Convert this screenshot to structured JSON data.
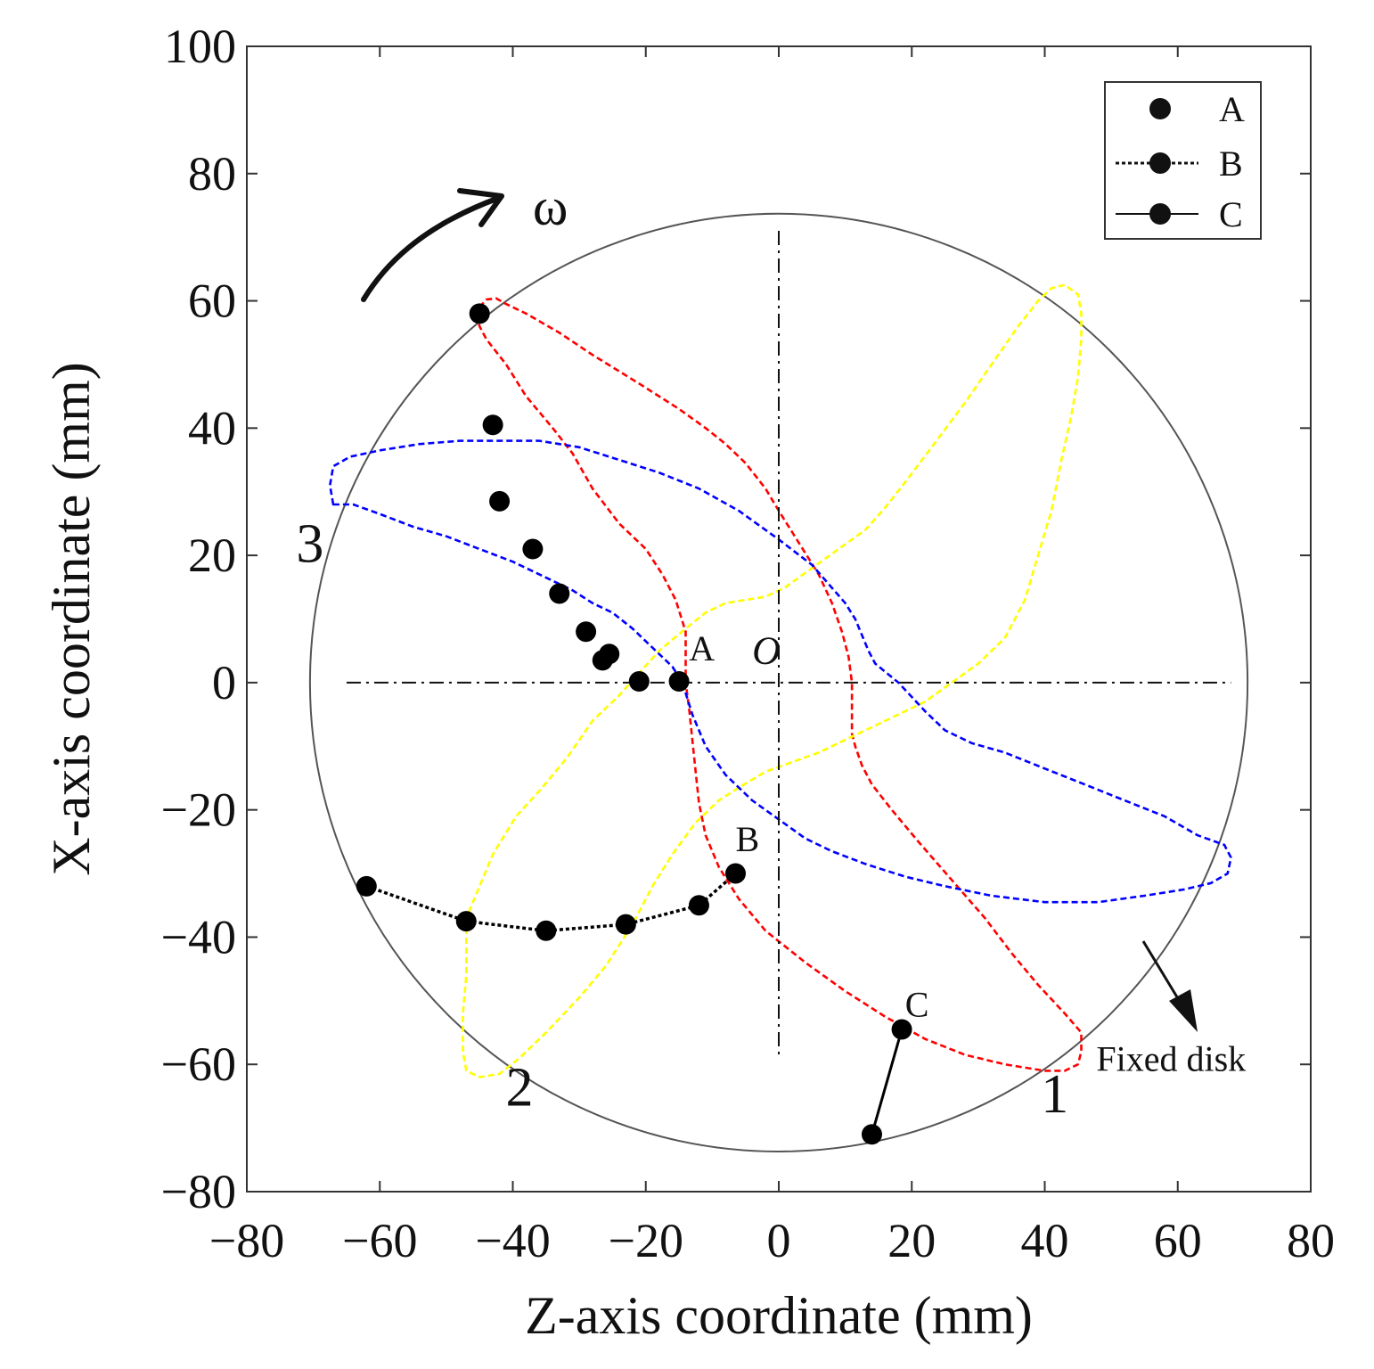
{
  "chart_data": {
    "type": "scatter",
    "title": "",
    "xlabel": "Z-axis coordinate (mm)",
    "ylabel": "X-axis coordinate (mm)",
    "xlim": [
      -80,
      80
    ],
    "ylim": [
      -80,
      100
    ],
    "xticks": [
      "−80",
      "−60",
      "−40",
      "−20",
      "0",
      "20",
      "40",
      "60",
      "80"
    ],
    "xtick_values": [
      -80,
      -60,
      -40,
      -20,
      0,
      20,
      40,
      60,
      80
    ],
    "yticks": [
      "100",
      "80",
      "60",
      "40",
      "20",
      "0",
      "−20",
      "−40",
      "−60",
      "−80"
    ],
    "ytick_values": [
      100,
      80,
      60,
      40,
      20,
      0,
      -20,
      -40,
      -60,
      -80
    ],
    "grid": false,
    "legend_position": "top-right",
    "fixed_disk": {
      "center": [
        0,
        0
      ],
      "radius_mm": 70.5,
      "label": "Fixed disk",
      "color": "#555555"
    },
    "center_lines": {
      "horizontal_z_range": [
        -65,
        68
      ],
      "vertical_x_range": [
        -59,
        71
      ]
    },
    "series": [
      {
        "name": "A",
        "style": "markers",
        "color": "#000000",
        "points": [
          [
            -45,
            58
          ],
          [
            -43,
            40.5
          ],
          [
            -42,
            28.5
          ],
          [
            -37,
            21
          ],
          [
            -33,
            14
          ],
          [
            -29,
            8
          ],
          [
            -25.5,
            4.5
          ],
          [
            -26.5,
            3.5
          ],
          [
            -21,
            0.2
          ],
          [
            -15,
            0.2
          ]
        ]
      },
      {
        "name": "B",
        "style": "dotted-line-markers",
        "color": "#000000",
        "points": [
          [
            -62,
            -32
          ],
          [
            -47,
            -37.5
          ],
          [
            -35,
            -39
          ],
          [
            -23,
            -38
          ],
          [
            -12,
            -35
          ],
          [
            -6.5,
            -30
          ]
        ]
      },
      {
        "name": "C",
        "style": "solid-line-markers",
        "color": "#000000",
        "points": [
          [
            14,
            -71
          ],
          [
            18.5,
            -54.5
          ]
        ]
      }
    ],
    "curves": [
      {
        "label": "1",
        "color": "#ff0000",
        "points": [
          [
            -45,
            59
          ],
          [
            -44,
            60.2
          ],
          [
            -42.5,
            60.4
          ],
          [
            -41,
            59.5
          ],
          [
            -38,
            58
          ],
          [
            -33,
            55
          ],
          [
            -28,
            51.5
          ],
          [
            -21,
            47
          ],
          [
            -15,
            43
          ],
          [
            -11,
            40
          ],
          [
            -8,
            37.5
          ],
          [
            -5,
            34.5
          ],
          [
            -2,
            30.5
          ],
          [
            0,
            27
          ],
          [
            3,
            22
          ],
          [
            6,
            17
          ],
          [
            8,
            12.5
          ],
          [
            9.5,
            8
          ],
          [
            10.5,
            4
          ],
          [
            11,
            0
          ],
          [
            11,
            -5
          ],
          [
            11,
            -8
          ],
          [
            11.5,
            -10
          ],
          [
            12.5,
            -13
          ],
          [
            14,
            -16
          ],
          [
            17,
            -20
          ],
          [
            21,
            -25
          ],
          [
            26,
            -31
          ],
          [
            31,
            -37
          ],
          [
            35,
            -42.5
          ],
          [
            39,
            -47.5
          ],
          [
            43,
            -52
          ],
          [
            45.5,
            -55
          ],
          [
            45.5,
            -58
          ],
          [
            45,
            -60
          ],
          [
            43,
            -61
          ],
          [
            40,
            -61
          ],
          [
            34,
            -60
          ],
          [
            28,
            -58.5
          ],
          [
            22,
            -56
          ],
          [
            16,
            -52.5
          ],
          [
            10,
            -48.5
          ],
          [
            4,
            -44
          ],
          [
            -2,
            -39
          ],
          [
            -6,
            -34
          ],
          [
            -9,
            -29
          ],
          [
            -11,
            -24
          ],
          [
            -12,
            -19
          ],
          [
            -12.5,
            -14
          ],
          [
            -13,
            -9
          ],
          [
            -13.5,
            -4
          ],
          [
            -14,
            0
          ],
          [
            -14,
            4
          ],
          [
            -14,
            8
          ],
          [
            -15.5,
            13
          ],
          [
            -17.5,
            17
          ],
          [
            -20,
            21
          ],
          [
            -24,
            25
          ],
          [
            -28,
            30.5
          ],
          [
            -31,
            36
          ],
          [
            -34,
            40
          ],
          [
            -38,
            45
          ],
          [
            -41,
            50
          ],
          [
            -44,
            54
          ],
          [
            -45,
            56
          ],
          [
            -45.5,
            58
          ],
          [
            -45,
            59
          ]
        ]
      },
      {
        "label": "2",
        "color": "#ffff00",
        "points": [
          [
            -47,
            -37
          ],
          [
            -47,
            -40
          ],
          [
            -47,
            -46
          ],
          [
            -47.5,
            -52
          ],
          [
            -47.5,
            -58
          ],
          [
            -47,
            -61
          ],
          [
            -45,
            -62
          ],
          [
            -42,
            -61.5
          ],
          [
            -39,
            -59
          ],
          [
            -35,
            -55
          ],
          [
            -30,
            -49.5
          ],
          [
            -26,
            -44.5
          ],
          [
            -22,
            -38
          ],
          [
            -19,
            -32
          ],
          [
            -16,
            -27
          ],
          [
            -12.5,
            -22
          ],
          [
            -9,
            -18.5
          ],
          [
            -6,
            -16.5
          ],
          [
            -2,
            -14
          ],
          [
            2,
            -12.5
          ],
          [
            6,
            -11
          ],
          [
            10,
            -9
          ],
          [
            14,
            -7
          ],
          [
            18,
            -5
          ],
          [
            22,
            -3
          ],
          [
            26,
            0
          ],
          [
            30,
            3
          ],
          [
            34,
            7
          ],
          [
            37,
            13
          ],
          [
            39,
            20
          ],
          [
            41,
            27
          ],
          [
            42.5,
            35
          ],
          [
            44,
            42
          ],
          [
            45,
            48
          ],
          [
            45.5,
            54
          ],
          [
            45.5,
            58
          ],
          [
            45,
            61
          ],
          [
            43,
            62.5
          ],
          [
            41,
            62
          ],
          [
            39,
            60
          ],
          [
            36,
            56
          ],
          [
            32,
            50
          ],
          [
            28,
            44
          ],
          [
            23,
            37
          ],
          [
            19,
            31.5
          ],
          [
            16,
            27.5
          ],
          [
            13,
            24
          ],
          [
            9,
            21
          ],
          [
            5,
            18
          ],
          [
            1,
            15
          ],
          [
            -2,
            13.5
          ],
          [
            -5,
            13
          ],
          [
            -8,
            12.5
          ],
          [
            -11,
            11
          ],
          [
            -14,
            8.5
          ],
          [
            -18,
            5
          ],
          [
            -21,
            1.5
          ],
          [
            -24,
            -2
          ],
          [
            -28,
            -6
          ],
          [
            -32,
            -12
          ],
          [
            -36,
            -17
          ],
          [
            -39.5,
            -21
          ],
          [
            -43,
            -27
          ],
          [
            -45,
            -32
          ],
          [
            -47,
            -37
          ]
        ]
      },
      {
        "label": "3",
        "color": "#0000ff",
        "points": [
          [
            -67,
            28
          ],
          [
            -67.5,
            31
          ],
          [
            -67,
            34
          ],
          [
            -64.5,
            35.5
          ],
          [
            -60,
            36.5
          ],
          [
            -54,
            37.5
          ],
          [
            -48,
            38
          ],
          [
            -42,
            38
          ],
          [
            -36,
            38
          ],
          [
            -30,
            37
          ],
          [
            -24,
            35
          ],
          [
            -18,
            33
          ],
          [
            -12,
            30.5
          ],
          [
            -6,
            27
          ],
          [
            0,
            22.5
          ],
          [
            5,
            18.5
          ],
          [
            10,
            12.5
          ],
          [
            11.5,
            10
          ],
          [
            13.5,
            5
          ],
          [
            14.5,
            3
          ],
          [
            18,
            0
          ],
          [
            22,
            -4.5
          ],
          [
            25,
            -7.5
          ],
          [
            29,
            -9.5
          ],
          [
            34,
            -11
          ],
          [
            40,
            -13.5
          ],
          [
            46,
            -16
          ],
          [
            52,
            -18.5
          ],
          [
            58,
            -21
          ],
          [
            63,
            -24
          ],
          [
            67,
            -25.5
          ],
          [
            68,
            -27.5
          ],
          [
            67.5,
            -30
          ],
          [
            65,
            -31.5
          ],
          [
            61,
            -32.5
          ],
          [
            55,
            -33.5
          ],
          [
            48,
            -34.5
          ],
          [
            40,
            -34.5
          ],
          [
            32,
            -33.5
          ],
          [
            25,
            -32
          ],
          [
            19,
            -30.5
          ],
          [
            13,
            -28.5
          ],
          [
            8,
            -26.5
          ],
          [
            4,
            -24.5
          ],
          [
            0,
            -21.5
          ],
          [
            -4,
            -18.5
          ],
          [
            -8,
            -14.5
          ],
          [
            -11,
            -10
          ],
          [
            -13,
            -5
          ],
          [
            -14.5,
            0
          ],
          [
            -16,
            2.5
          ],
          [
            -19,
            5.5
          ],
          [
            -22,
            8.5
          ],
          [
            -25,
            11
          ],
          [
            -28,
            12.5
          ],
          [
            -31,
            14.5
          ],
          [
            -35,
            16.5
          ],
          [
            -40,
            19
          ],
          [
            -45,
            21
          ],
          [
            -50,
            23
          ],
          [
            -55,
            24.5
          ],
          [
            -60,
            26.5
          ],
          [
            -64,
            28
          ],
          [
            -67,
            28
          ]
        ]
      }
    ],
    "point_labels": [
      {
        "text": "A",
        "at": [
          -13.5,
          3.5
        ]
      },
      {
        "text": "O",
        "at": [
          -4,
          3
        ]
      },
      {
        "text": "B",
        "at": [
          -6.5,
          -26.5
        ]
      },
      {
        "text": "C",
        "at": [
          19,
          -52.5
        ]
      }
    ],
    "annotations": {
      "omega": {
        "text": "ω",
        "at": [
          -37,
          72
        ]
      },
      "curve_labels": [
        {
          "text": "1",
          "at": [
            41.5,
            -67.5
          ]
        },
        {
          "text": "2",
          "at": [
            -39,
            -66.5
          ]
        },
        {
          "text": "3",
          "at": [
            -70.5,
            19
          ]
        }
      ],
      "fixed_disk_label": {
        "text": "Fixed disk",
        "at": [
          59,
          -61
        ]
      }
    },
    "legend": [
      {
        "label": "A",
        "line": "none"
      },
      {
        "label": "B",
        "line": "dotted"
      },
      {
        "label": "C",
        "line": "solid"
      }
    ]
  }
}
